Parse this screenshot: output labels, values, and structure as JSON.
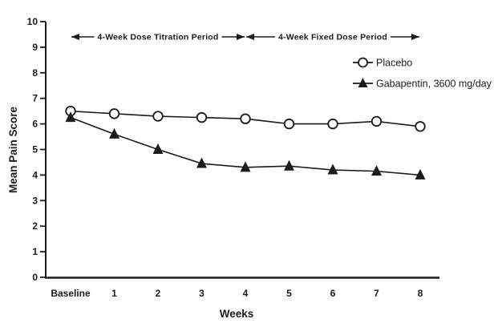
{
  "chart_data": {
    "type": "line",
    "title": "",
    "xlabel": "Weeks",
    "ylabel": "Mean Pain Score",
    "ylim": [
      0,
      10
    ],
    "yticks": [
      0,
      1,
      2,
      3,
      4,
      5,
      6,
      7,
      8,
      9,
      10
    ],
    "categories": [
      "Baseline",
      "1",
      "2",
      "3",
      "4",
      "5",
      "6",
      "7",
      "8"
    ],
    "series": [
      {
        "name": "Placebo",
        "marker": "circle-open",
        "values": [
          6.5,
          6.4,
          6.3,
          6.25,
          6.2,
          6.0,
          6.0,
          6.1,
          5.9
        ]
      },
      {
        "name": "Gabapentin, 3600 mg/day",
        "marker": "triangle-filled",
        "values": [
          6.25,
          5.6,
          5.0,
          4.45,
          4.3,
          4.35,
          4.2,
          4.15,
          4.0
        ]
      }
    ],
    "annotations": [
      {
        "label": "4-Week Dose Titration Period",
        "x_start": "Baseline",
        "x_end": "4"
      },
      {
        "label": "4-Week Fixed Dose Period",
        "x_start": "4",
        "x_end": "8"
      }
    ],
    "legend_position": "upper-right",
    "grid": false,
    "colors": {
      "line": "#1b1b1b",
      "marker_fill": "#ffffff",
      "background": "#ffffff"
    }
  }
}
